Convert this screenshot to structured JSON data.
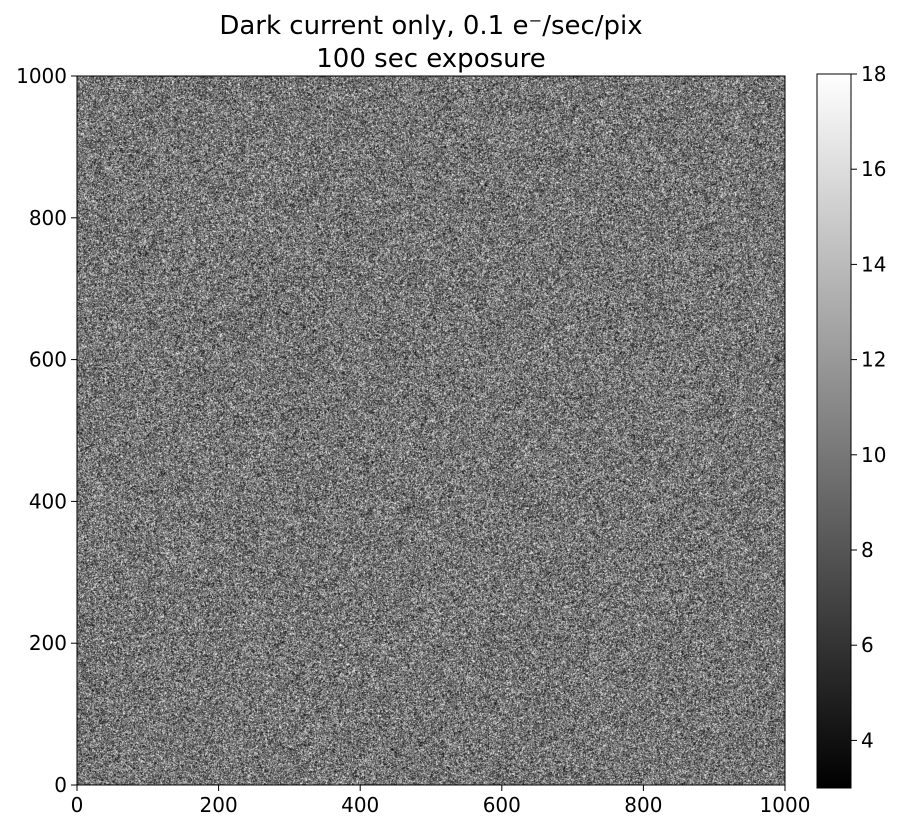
{
  "chart_data": {
    "type": "heatmap",
    "title_line1": "Dark current only, 0.1 e⁻/sec/pix",
    "title_line2": "100 sec exposure",
    "xlabel": "",
    "ylabel": "",
    "xlim": [
      0,
      1000
    ],
    "ylim": [
      0,
      1000
    ],
    "x_ticks": [
      0,
      200,
      400,
      600,
      800,
      1000
    ],
    "y_ticks": [
      0,
      200,
      400,
      600,
      800,
      1000
    ],
    "grid": false,
    "colormap": "gray",
    "colorbar": {
      "vmin": 3,
      "vmax": 18,
      "ticks": [
        4,
        6,
        8,
        10,
        12,
        14,
        16,
        18
      ]
    },
    "image_summary": {
      "mean": 10,
      "distribution": "noise"
    }
  },
  "colors": {
    "low": "#000000",
    "high": "#ffffff",
    "axes": "#000000"
  }
}
